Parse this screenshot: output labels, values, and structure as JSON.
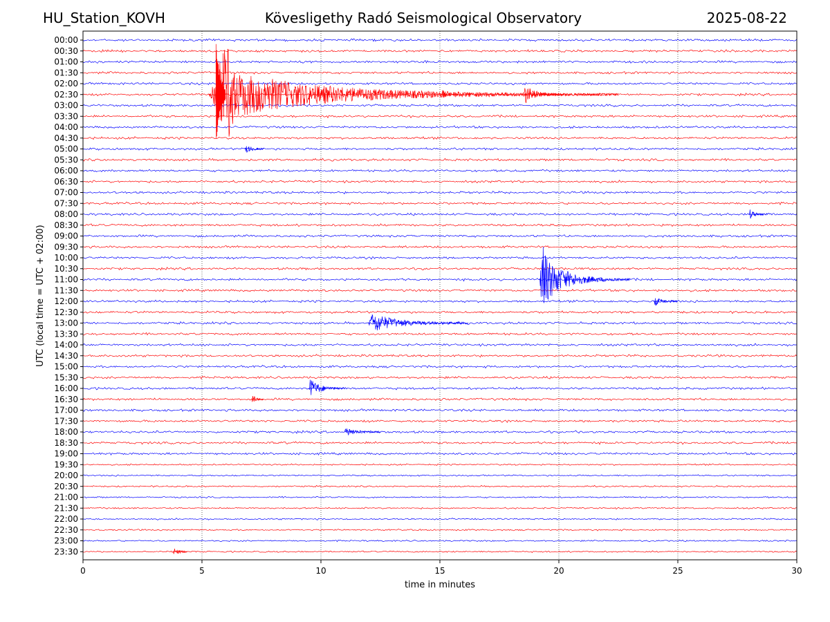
{
  "header": {
    "station": "HU_Station_KOVH",
    "title": "Kövesligethy Radó Seismological Observatory",
    "date": "2025-08-22"
  },
  "chart_data": {
    "type": "line",
    "xlabel": "time in minutes",
    "ylabel": "UTC (local time = UTC + 02:00)",
    "xlim": [
      0,
      30
    ],
    "xticks": [
      0,
      5,
      10,
      15,
      20,
      25,
      30
    ],
    "vertical_grid": "dotted",
    "row_labels": [
      "00:00",
      "00:30",
      "01:00",
      "01:30",
      "02:00",
      "02:30",
      "03:00",
      "03:30",
      "04:00",
      "04:30",
      "05:00",
      "05:30",
      "06:00",
      "06:30",
      "07:00",
      "07:30",
      "08:00",
      "08:30",
      "09:00",
      "09:30",
      "10:00",
      "10:30",
      "11:00",
      "11:30",
      "12:00",
      "12:30",
      "13:00",
      "13:30",
      "14:00",
      "14:30",
      "15:00",
      "15:30",
      "16:00",
      "16:30",
      "17:00",
      "17:30",
      "18:00",
      "18:30",
      "19:00",
      "19:30",
      "20:00",
      "20:30",
      "21:00",
      "21:30",
      "22:00",
      "22:30",
      "23:00",
      "23:30"
    ],
    "colors": [
      "#0000ff",
      "#ff0000"
    ],
    "events": [
      {
        "row": "02:30",
        "start_min": 5.3,
        "end_min": 22.5,
        "peak": "large"
      },
      {
        "row": "02:30",
        "start_min": 15.1,
        "end_min": 15.6,
        "peak": "small"
      },
      {
        "row": "02:30",
        "start_min": 18.5,
        "end_min": 20.2,
        "peak": "medium"
      },
      {
        "row": "05:00",
        "start_min": 6.8,
        "end_min": 7.6,
        "peak": "small"
      },
      {
        "row": "08:00",
        "start_min": 28.0,
        "end_min": 28.8,
        "peak": "small"
      },
      {
        "row": "11:00",
        "start_min": 19.2,
        "end_min": 23.0,
        "peak": "large"
      },
      {
        "row": "12:00",
        "start_min": 24.0,
        "end_min": 25.0,
        "peak": "small"
      },
      {
        "row": "13:00",
        "start_min": 12.0,
        "end_min": 16.2,
        "peak": "medium"
      },
      {
        "row": "16:00",
        "start_min": 9.5,
        "end_min": 11.0,
        "peak": "medium"
      },
      {
        "row": "16:30",
        "start_min": 7.1,
        "end_min": 7.6,
        "peak": "small"
      },
      {
        "row": "18:00",
        "start_min": 11.0,
        "end_min": 12.5,
        "peak": "small"
      },
      {
        "row": "23:30",
        "start_min": 3.8,
        "end_min": 4.4,
        "peak": "small"
      }
    ]
  }
}
